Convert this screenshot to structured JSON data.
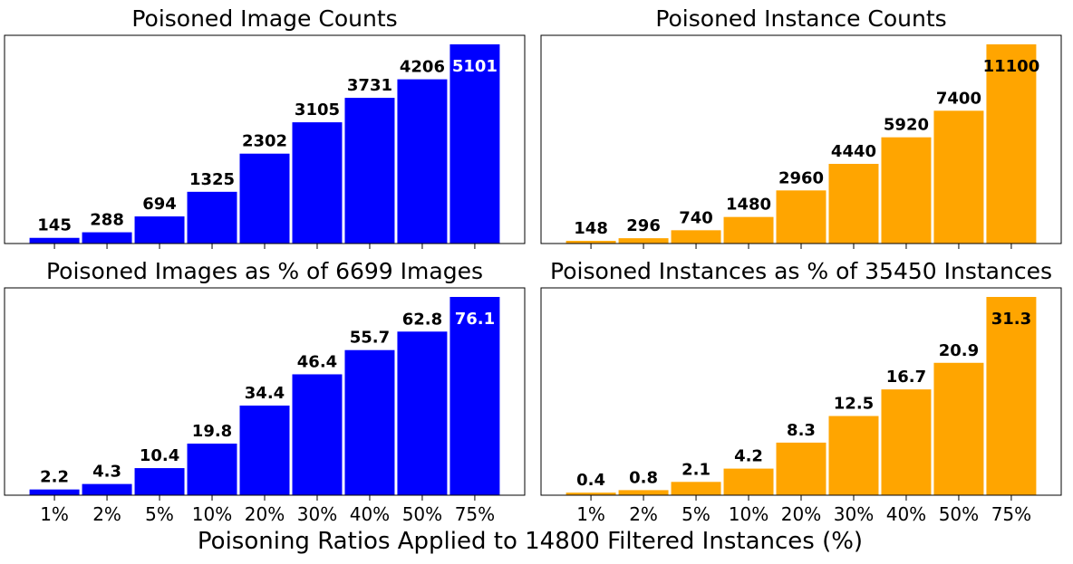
{
  "figure": {
    "xlabel": "Poisoning Ratios Applied to 14800 Filtered Instances (%)"
  },
  "chart_data": [
    {
      "type": "bar",
      "title": "Poisoned Image Counts",
      "categories": [
        "1%",
        "2%",
        "5%",
        "10%",
        "20%",
        "30%",
        "40%",
        "50%",
        "75%"
      ],
      "values": [
        145,
        288,
        694,
        1325,
        2302,
        3105,
        3731,
        4206,
        5101
      ],
      "labels": [
        "145",
        "288",
        "694",
        "1325",
        "2302",
        "3105",
        "3731",
        "4206",
        "5101"
      ],
      "color": "#0000ff",
      "ylim": [
        0,
        5101
      ],
      "show_xticklabels": false,
      "grid": false
    },
    {
      "type": "bar",
      "title": "Poisoned Instance Counts",
      "categories": [
        "1%",
        "2%",
        "5%",
        "10%",
        "20%",
        "30%",
        "40%",
        "50%",
        "75%"
      ],
      "values": [
        148,
        296,
        740,
        1480,
        2960,
        4440,
        5920,
        7400,
        11100
      ],
      "labels": [
        "148",
        "296",
        "740",
        "1480",
        "2960",
        "4440",
        "5920",
        "7400",
        "11100"
      ],
      "color": "#ffa500",
      "ylim": [
        0,
        11100
      ],
      "show_xticklabels": false,
      "grid": false
    },
    {
      "type": "bar",
      "title": "Poisoned Images as % of 6699 Images",
      "categories": [
        "1%",
        "2%",
        "5%",
        "10%",
        "20%",
        "30%",
        "40%",
        "50%",
        "75%"
      ],
      "values": [
        2.2,
        4.3,
        10.4,
        19.8,
        34.4,
        46.4,
        55.7,
        62.8,
        76.1
      ],
      "labels": [
        "2.2",
        "4.3",
        "10.4",
        "19.8",
        "34.4",
        "46.4",
        "55.7",
        "62.8",
        "76.1"
      ],
      "color": "#0000ff",
      "ylim": [
        0,
        76.1
      ],
      "show_xticklabels": true,
      "grid": false
    },
    {
      "type": "bar",
      "title": "Poisoned Instances as % of 35450 Instances",
      "categories": [
        "1%",
        "2%",
        "5%",
        "10%",
        "20%",
        "30%",
        "40%",
        "50%",
        "75%"
      ],
      "values": [
        0.4,
        0.8,
        2.1,
        4.2,
        8.3,
        12.5,
        16.7,
        20.9,
        31.3
      ],
      "labels": [
        "0.4",
        "0.8",
        "2.1",
        "4.2",
        "8.3",
        "12.5",
        "16.7",
        "20.9",
        "31.3"
      ],
      "color": "#ffa500",
      "ylim": [
        0,
        31.3
      ],
      "show_xticklabels": true,
      "grid": false
    }
  ]
}
